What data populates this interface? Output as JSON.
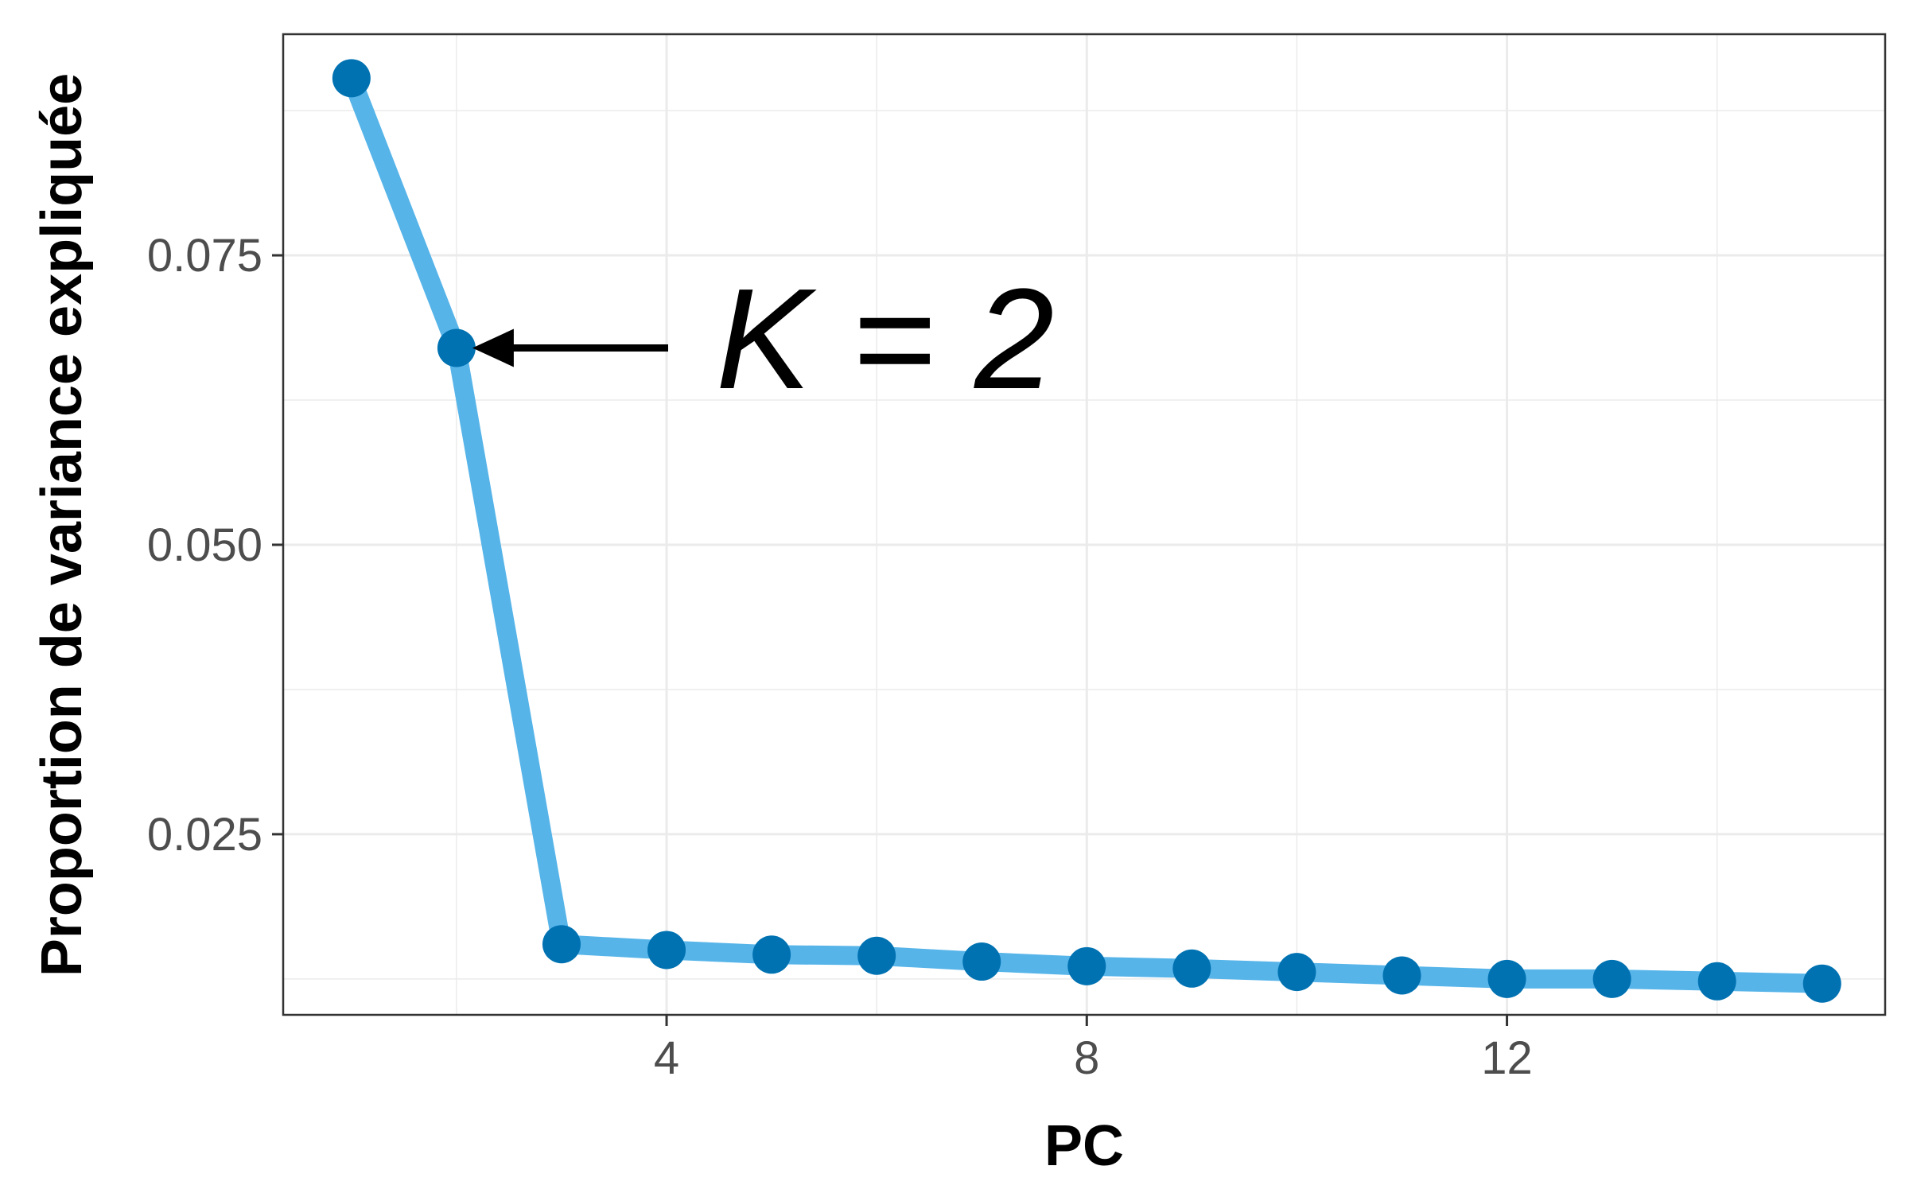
{
  "chart_data": {
    "type": "line",
    "xlabel": "PC",
    "ylabel": "Proportion de variance expliquée",
    "xlim": [
      0.35,
      15.6
    ],
    "ylim": [
      0.0094,
      0.0941
    ],
    "x_ticks": [
      4,
      8,
      12
    ],
    "x_tick_labels": [
      "4",
      "8",
      "12"
    ],
    "y_ticks": [
      0.025,
      0.05,
      0.075
    ],
    "y_tick_labels": [
      "0.025",
      "0.050",
      "0.075"
    ],
    "grid": true,
    "legend": "none",
    "colors": {
      "line": "#56B4E9",
      "points": "#0072B2"
    },
    "x": [
      1,
      2,
      3,
      4,
      5,
      6,
      7,
      8,
      9,
      10,
      11,
      12,
      13,
      14,
      15
    ],
    "series": [
      {
        "values": [
          0.0903,
          0.067,
          0.0155,
          0.015,
          0.0146,
          0.0145,
          0.014,
          0.0136,
          0.0134,
          0.0131,
          0.0128,
          0.0125,
          0.0125,
          0.0123,
          0.0121
        ]
      }
    ],
    "annotations": [
      {
        "text": "K = 2",
        "x": 2,
        "y": 0.067,
        "arrow": true
      }
    ]
  }
}
